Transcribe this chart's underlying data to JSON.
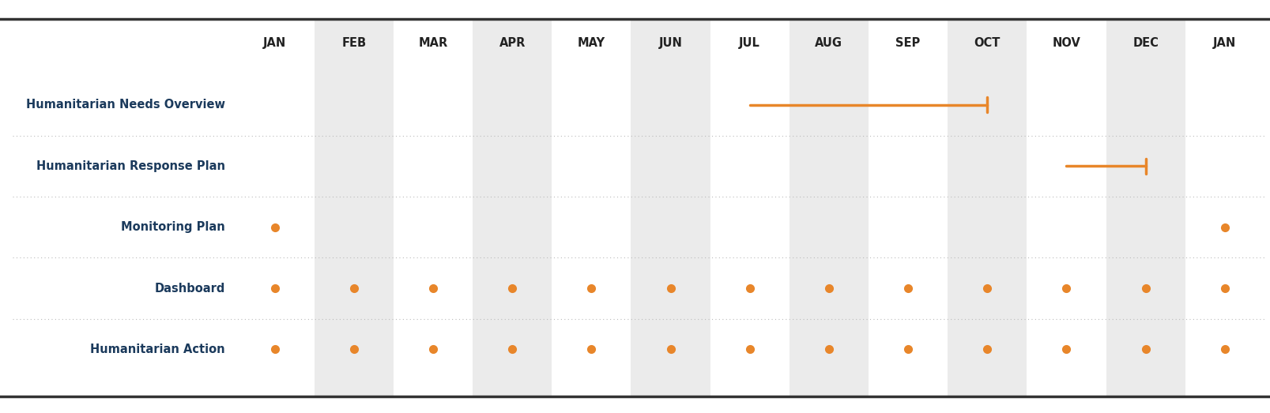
{
  "months": [
    "JAN",
    "FEB",
    "MAR",
    "APR",
    "MAY",
    "JUN",
    "JUL",
    "AUG",
    "SEP",
    "OCT",
    "NOV",
    "DEC",
    "JAN"
  ],
  "rows": [
    "Humanitarian Needs Overview",
    "Humanitarian Response Plan",
    "Monitoring Plan",
    "Dashboard",
    "Humanitarian Action"
  ],
  "orange_color": "#E8862A",
  "label_color": "#1B3A5C",
  "header_color": "#222222",
  "bg_stripe_color": "#EBEBEB",
  "bg_white_color": "#FFFFFF",
  "border_color": "#333333",
  "separator_color": "#BBBBBB",
  "line_lw": 2.5,
  "label_fontsize": 10.5,
  "header_fontsize": 10.5,
  "bars": [
    {
      "row": 0,
      "start": 6,
      "end": 9
    },
    {
      "row": 1,
      "start": 10,
      "end": 11
    }
  ],
  "dots": {
    "2": [
      0,
      12
    ],
    "3": [
      0,
      1,
      2,
      3,
      4,
      5,
      6,
      7,
      8,
      9,
      10,
      11,
      12
    ],
    "4": [
      0,
      1,
      2,
      3,
      4,
      5,
      6,
      7,
      8,
      9,
      10,
      11,
      12
    ]
  },
  "stripe_pattern": [
    0,
    1,
    0,
    1,
    0,
    1,
    0,
    1,
    0,
    1,
    0,
    1,
    0
  ]
}
